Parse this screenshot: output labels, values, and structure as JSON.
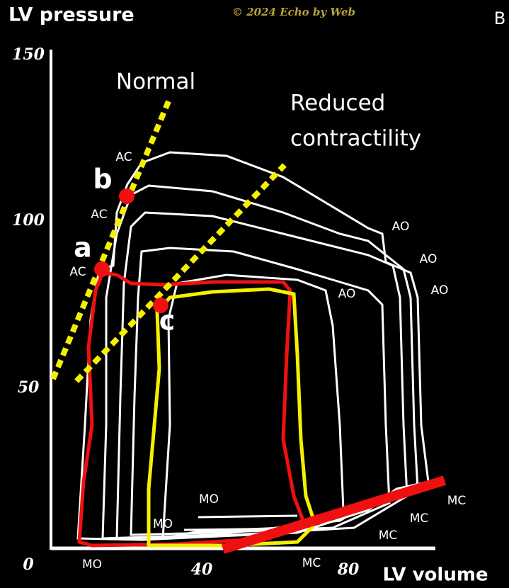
{
  "header": {
    "y_axis_title": "LV pressure",
    "copyright": "© 2024 Echo by Web",
    "panel": "B"
  },
  "axes": {
    "y_ticks": [
      "150",
      "100",
      "50",
      "0"
    ],
    "x_ticks": [
      "40",
      "80"
    ],
    "x_axis_title": "LV volume"
  },
  "lines": {
    "normal": "Normal",
    "reduced": [
      "Reduced",
      "contractility"
    ]
  },
  "points": [
    "a",
    "b",
    "c"
  ],
  "labels": {
    "ac": [
      "AC",
      "AC",
      "AC"
    ],
    "ao": [
      "AO",
      "AO",
      "AO",
      "AO"
    ],
    "mo": [
      "MO",
      "MO",
      "MO"
    ],
    "mc": [
      "MC",
      "MC",
      "MC",
      "MC"
    ]
  }
}
